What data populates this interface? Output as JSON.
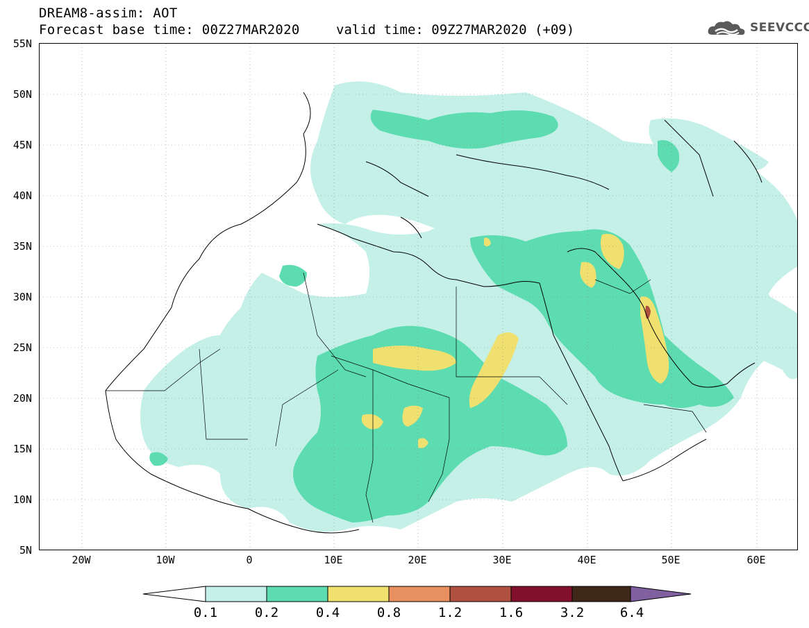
{
  "header": {
    "title": "DREAM8-assim: AOT",
    "base_time": "Forecast base time: 00Z27MAR2020",
    "valid_time": "valid time: 09Z27MAR2020 (+09)"
  },
  "logo": {
    "text": "SEEVCCC",
    "icon": "cloud-logo-icon"
  },
  "axes": {
    "lat_labels": [
      "55N",
      "50N",
      "45N",
      "40N",
      "35N",
      "30N",
      "25N",
      "20N",
      "15N",
      "10N",
      "5N"
    ],
    "lon_labels": [
      "20W",
      "10W",
      "0",
      "10E",
      "20E",
      "30E",
      "40E",
      "50E",
      "60E"
    ]
  },
  "colorbar": {
    "labels": [
      "0.1",
      "0.2",
      "0.4",
      "0.8",
      "1.2",
      "1.6",
      "3.2",
      "6.4"
    ],
    "colors": [
      "#c4f0e8",
      "#5cdcb0",
      "#f0e070",
      "#e89060",
      "#b05040",
      "#80102c",
      "#402818",
      "#8060a0"
    ]
  }
}
